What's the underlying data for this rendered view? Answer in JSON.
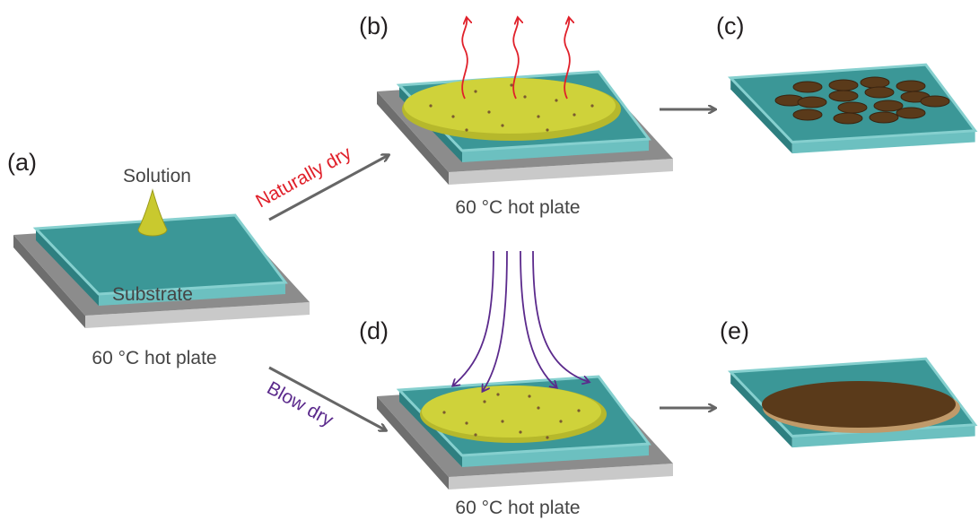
{
  "panel_labels": [
    "(a)",
    "(b)",
    "(c)",
    "(d)",
    "(e)"
  ],
  "solution_label": "Solution",
  "substrate_label": "Substrate",
  "hot_plate_labels": [
    "60 °C hot plate",
    "60 °C hot plate",
    "60 °C hot plate"
  ],
  "arrow_labels": {
    "natural": "Naturally dry",
    "blow": "Blow dry"
  }
}
